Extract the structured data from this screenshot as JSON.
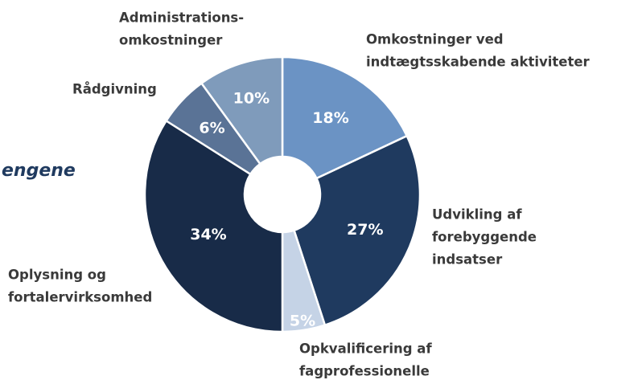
{
  "chart_data": {
    "type": "donut",
    "title": "engene",
    "categories": [
      [
        "Omkostninger ved",
        "indtægtsskabende aktiviteter"
      ],
      [
        "Udvikling af",
        "forebyggende",
        "indsatser"
      ],
      [
        "Opkvalificering af",
        "fagprofessionelle"
      ],
      [
        "Oplysning og",
        "fortalervirksomhed"
      ],
      [
        "Rådgivning"
      ],
      [
        "Administrations-",
        "omkostninger"
      ]
    ],
    "values": [
      18,
      27,
      5,
      34,
      6,
      10
    ],
    "value_labels": [
      "18%",
      "27%",
      "5%",
      "34%",
      "6%",
      "10%"
    ],
    "colors": [
      "#6b93c4",
      "#1f3a5f",
      "#c5d3e6",
      "#182b48",
      "#5a7396",
      "#7f9bbb"
    ]
  }
}
